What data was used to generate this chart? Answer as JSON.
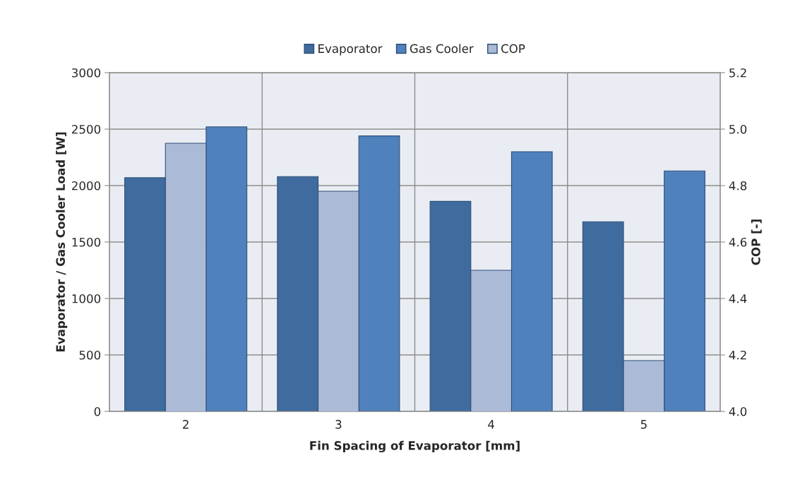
{
  "chart_data": {
    "type": "bar",
    "xlabel": "Fin Spacing of Evaporator [mm]",
    "ylabel": "Evaporator / Gas Cooler Load [W]",
    "y2label": "COP [-]",
    "categories": [
      "2",
      "3",
      "4",
      "5"
    ],
    "series": [
      {
        "name": "Evaporator",
        "color": "#3f6b9e",
        "values": [
          2070,
          2080,
          1860,
          1680
        ]
      },
      {
        "name": "Gas Cooler",
        "color": "#4f81bd",
        "values": [
          2520,
          2440,
          2300,
          2130
        ]
      },
      {
        "name": "COP",
        "color": "#aabad7",
        "values": [
          4.95,
          4.78,
          4.5,
          4.18
        ],
        "axis": "y2"
      }
    ],
    "ylim": [
      0,
      3000
    ],
    "yticks": [
      0,
      500,
      1000,
      1500,
      2000,
      2500,
      3000
    ],
    "y2lim": [
      4.0,
      5.2
    ],
    "y2ticks": [
      {
        "value": 4.0,
        "label": "4.0"
      },
      {
        "value": 4.2,
        "label": "4.2"
      },
      {
        "value": 4.4,
        "label": "4.4"
      },
      {
        "value": 4.6,
        "label": "4.6"
      },
      {
        "value": 4.8,
        "label": "4.8"
      },
      {
        "value": 5.0,
        "label": "5.0"
      },
      {
        "value": 5.2,
        "label": "5.2"
      }
    ],
    "grid": true,
    "legend": "top"
  }
}
